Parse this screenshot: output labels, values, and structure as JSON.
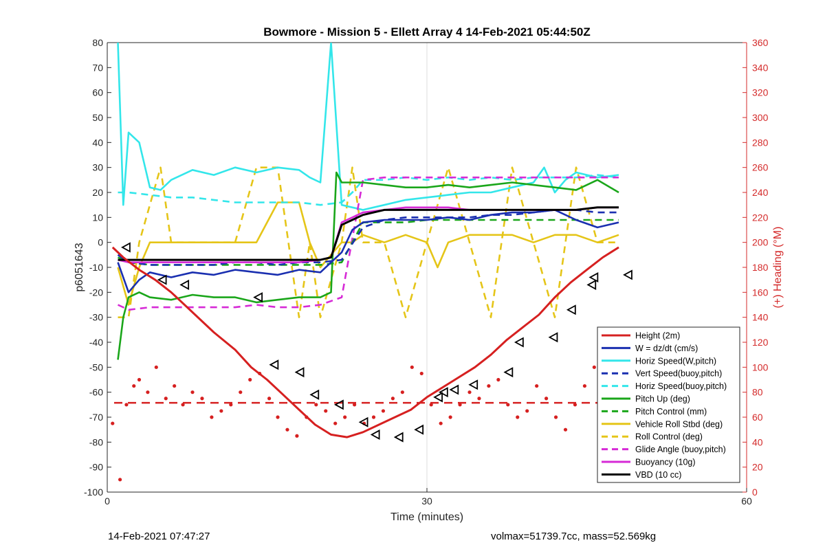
{
  "footer": {
    "timestamp": "14-Feb-2021 07:47:27",
    "volmax_mass": "volmax=51739.7cc, mass=52.569kg"
  },
  "chart_data": {
    "type": "line",
    "title": "Bowmore - Mission 5 - Ellett Array 4 14-Feb-2021 05:44:50Z",
    "xlabel": "Time (minutes)",
    "ylabel_left": "p6051643",
    "ylabel_right": "(+) Heading (°M)",
    "xlim": [
      0,
      60
    ],
    "ylim_left": [
      -100,
      80
    ],
    "ylim_right": [
      0,
      360
    ],
    "xticks": [
      "0",
      "30",
      "60"
    ],
    "yticks_left": [
      "80",
      "70",
      "60",
      "50",
      "40",
      "30",
      "20",
      "10",
      "0",
      "-10",
      "-20",
      "-30",
      "-40",
      "-50",
      "-60",
      "-70",
      "-80",
      "-90",
      "-100"
    ],
    "yticks_right": [
      "360",
      "340",
      "320",
      "300",
      "280",
      "260",
      "240",
      "220",
      "200",
      "180",
      "160",
      "140",
      "120",
      "100",
      "80",
      "60",
      "40",
      "20",
      "0"
    ],
    "grid": "x-only",
    "legend_position": "bottom-right",
    "colors": {
      "red": "#d62020",
      "blue": "#1a2fb0",
      "cyan": "#33e6ea",
      "green": "#1aa61a",
      "yellow": "#e5c518",
      "magenta": "#d62ad6",
      "black": "#000000",
      "right_axis": "#d42a2a"
    },
    "legend": [
      {
        "label": "Height (2m)",
        "color": "#d62020",
        "dash": "solid"
      },
      {
        "label": "W = dz/dt (cm/s)",
        "color": "#1a2fb0",
        "dash": "solid"
      },
      {
        "label": "Horiz Speed(W,pitch)",
        "color": "#33e6ea",
        "dash": "solid"
      },
      {
        "label": "Vert Speed(buoy,pitch)",
        "color": "#1a2fb0",
        "dash": "dashed"
      },
      {
        "label": "Horiz Speed(buoy,pitch)",
        "color": "#33e6ea",
        "dash": "dashed"
      },
      {
        "label": "Pitch Up (deg)",
        "color": "#1aa61a",
        "dash": "solid"
      },
      {
        "label": "Pitch Control (mm)",
        "color": "#1aa61a",
        "dash": "dashed"
      },
      {
        "label": "Vehicle Roll Stbd (deg)",
        "color": "#e5c518",
        "dash": "solid"
      },
      {
        "label": "Roll Control (deg)",
        "color": "#e5c518",
        "dash": "dashed"
      },
      {
        "label": "Glide Angle (buoy,pitch)",
        "color": "#d62ad6",
        "dash": "dashed"
      },
      {
        "label": "Buoyancy (10g)",
        "color": "#d62ad6",
        "dash": "solid"
      },
      {
        "label": "VBD (10 cc)",
        "color": "#000000",
        "dash": "solid"
      }
    ],
    "series": [
      {
        "name": "Height (2m)",
        "x": [
          0.5,
          1.5,
          3,
          4.5,
          6,
          8,
          10,
          12,
          13.5,
          15,
          16.5,
          18,
          19.5,
          21,
          22.5,
          24,
          25.5,
          27,
          28.5,
          30,
          31.5,
          33,
          34.5,
          36,
          37.5,
          39,
          40.5,
          42,
          43.5,
          45,
          46.5,
          48
        ],
        "y": [
          -2,
          -6,
          -11,
          -15,
          -20,
          -28,
          -36,
          -43,
          -50,
          -55,
          -61,
          -67,
          -73,
          -77,
          -78,
          -76,
          -73,
          -70,
          -67,
          -62,
          -58,
          -54,
          -50,
          -45,
          -39,
          -34,
          -29,
          -22,
          -16,
          -11,
          -6,
          -2
        ]
      },
      {
        "name": "Glide markers",
        "x": [
          1.8,
          5.2,
          7.3,
          14.2,
          15.7,
          18.1,
          19.5,
          21.8,
          24.1,
          25.2,
          27.4,
          29.3,
          31.1,
          31.6,
          32.6,
          34.4,
          37.7,
          38.7,
          41.9,
          43.6,
          45.5,
          45.7,
          48.9
        ],
        "y": [
          -2,
          -15,
          -17,
          -22,
          -49,
          -52,
          -61,
          -65,
          -72,
          -77,
          -78,
          -75,
          -62,
          -60,
          -59,
          -57,
          -52,
          -40,
          -38,
          -27,
          -17,
          -14,
          -13
        ]
      },
      {
        "name": "Heading",
        "type": "scatter",
        "x": [
          0.5,
          1.2,
          1.8,
          2.5,
          3,
          3.8,
          4.6,
          5.5,
          6.3,
          7.1,
          8,
          8.9,
          9.8,
          10.7,
          11.6,
          12.5,
          13.4,
          14.3,
          15.2,
          16,
          16.9,
          17.8,
          18.7,
          19.6,
          20.5,
          21.4,
          22.3,
          23.2,
          24.1,
          25,
          25.9,
          26.8,
          27.7,
          28.6,
          29.5,
          30.4,
          31.3,
          32.2,
          33.1,
          34,
          34.9,
          35.8,
          36.7,
          37.6,
          38.5,
          39.4,
          40.3,
          41.2,
          42.1,
          43,
          43.9,
          44.8,
          45.7,
          46.6,
          47.5,
          48.2
        ],
        "y": [
          55,
          10,
          70,
          85,
          90,
          80,
          100,
          75,
          85,
          70,
          80,
          75,
          60,
          65,
          70,
          80,
          90,
          95,
          75,
          60,
          50,
          45,
          60,
          70,
          65,
          55,
          60,
          70,
          55,
          60,
          65,
          75,
          80,
          100,
          95,
          70,
          55,
          60,
          70,
          80,
          75,
          85,
          90,
          70,
          60,
          65,
          85,
          75,
          60,
          50,
          70,
          85,
          100,
          80,
          75,
          70
        ]
      },
      {
        "name": "W = dz/dt (cm/s)",
        "x": [
          1,
          2,
          3,
          4,
          6,
          8,
          10,
          12,
          14,
          16,
          18,
          20,
          22,
          23,
          24,
          26,
          28,
          30,
          32,
          34,
          36,
          38,
          40,
          42,
          44,
          46,
          48
        ],
        "y": [
          -8,
          -20,
          -15,
          -12,
          -14,
          -12,
          -13,
          -11,
          -12,
          -13,
          -11,
          -12,
          -4,
          5,
          8,
          9,
          9,
          9,
          10,
          9,
          11,
          12,
          12,
          13,
          9,
          6,
          8
        ]
      },
      {
        "name": "Horiz Speed(W,pitch)",
        "x": [
          1,
          1.5,
          2,
          3,
          4,
          5,
          6,
          8,
          10,
          12,
          14,
          16,
          18,
          19,
          20,
          21,
          22,
          24,
          26,
          28,
          30,
          32,
          34,
          36,
          38,
          40,
          41,
          42,
          43,
          44,
          46,
          48
        ],
        "y": [
          80,
          15,
          44,
          40,
          22,
          21,
          25,
          29,
          27,
          30,
          28,
          30,
          29,
          26,
          24,
          80,
          15,
          13,
          15,
          17,
          18,
          19,
          20,
          20,
          22,
          24,
          30,
          20,
          25,
          28,
          26,
          27
        ]
      },
      {
        "name": "Vert Speed(buoy,pitch)",
        "x": [
          1,
          2,
          4,
          6,
          8,
          10,
          12,
          14,
          16,
          18,
          20,
          22,
          24,
          26,
          28,
          30,
          32,
          34,
          36,
          38,
          40,
          42,
          44,
          46,
          48
        ],
        "y": [
          -5,
          -8,
          -9,
          -9,
          -9,
          -9,
          -8,
          -8,
          -9,
          -8,
          -8,
          -7,
          6,
          9,
          10,
          10,
          10,
          10,
          11,
          11,
          12,
          13,
          13,
          12,
          12
        ]
      },
      {
        "name": "Horiz Speed(buoy,pitch)",
        "x": [
          1,
          2,
          4,
          6,
          8,
          10,
          12,
          14,
          16,
          18,
          20,
          22,
          23,
          24,
          26,
          28,
          30,
          32,
          34,
          36,
          38,
          40,
          42,
          44,
          46,
          48
        ],
        "y": [
          20,
          20,
          19,
          18,
          18,
          17,
          16,
          16,
          16,
          16,
          15,
          16,
          20,
          25,
          25,
          26,
          25,
          26,
          25,
          26,
          25,
          26,
          26,
          26,
          27,
          26
        ]
      },
      {
        "name": "Pitch Up (deg)",
        "x": [
          1,
          1.5,
          2,
          3,
          4,
          6,
          8,
          10,
          12,
          14,
          16,
          18,
          20,
          21,
          21.5,
          22,
          24,
          26,
          28,
          30,
          32,
          34,
          36,
          38,
          40,
          42,
          44,
          46,
          48
        ],
        "y": [
          -47,
          -30,
          -22,
          -20,
          -22,
          -23,
          -21,
          -22,
          -22,
          -24,
          -23,
          -22,
          -22,
          -20,
          28,
          24,
          24,
          23,
          22,
          22,
          23,
          22,
          23,
          24,
          23,
          22,
          21,
          25,
          20
        ]
      },
      {
        "name": "Pitch Control (mm)",
        "x": [
          1,
          2,
          4,
          6,
          8,
          10,
          12,
          14,
          16,
          18,
          20,
          22,
          24,
          26,
          28,
          30,
          32,
          34,
          36,
          38,
          40,
          42,
          44,
          46,
          48
        ],
        "y": [
          -6,
          -8,
          -9,
          -9,
          -9,
          -9,
          -9,
          -9,
          -9,
          -9,
          -9,
          -8,
          8,
          8,
          8,
          9,
          9,
          9,
          9,
          9,
          9,
          9,
          9,
          9,
          9
        ]
      },
      {
        "name": "Vehicle Roll Stbd (deg)",
        "x": [
          1,
          2,
          3,
          4,
          5,
          6,
          8,
          10,
          12,
          14,
          16,
          18,
          19,
          20,
          22,
          23,
          24,
          26,
          28,
          30,
          31,
          32,
          34,
          36,
          38,
          40,
          42,
          44,
          46,
          48
        ],
        "y": [
          -10,
          -25,
          -10,
          0,
          0,
          0,
          0,
          0,
          0,
          0,
          16,
          16,
          0,
          -10,
          0,
          0,
          3,
          0,
          3,
          0,
          -10,
          0,
          3,
          3,
          3,
          0,
          3,
          3,
          0,
          3
        ]
      },
      {
        "name": "Roll Control (deg)",
        "x": [
          1,
          2,
          3,
          5,
          6,
          8,
          10,
          12,
          14,
          16,
          17,
          18,
          19,
          20,
          22,
          23,
          24,
          26,
          28,
          30,
          32,
          34,
          36,
          38,
          40,
          42,
          44,
          46,
          48
        ],
        "y": [
          -30,
          -30,
          0,
          30,
          0,
          0,
          0,
          0,
          30,
          30,
          0,
          -30,
          0,
          -30,
          0,
          30,
          0,
          0,
          -30,
          0,
          30,
          0,
          -30,
          30,
          0,
          -30,
          30,
          0,
          0
        ]
      },
      {
        "name": "Glide Angle (buoy,pitch)",
        "x": [
          1,
          2,
          4,
          6,
          8,
          10,
          12,
          14,
          16,
          18,
          20,
          22,
          24,
          26,
          28,
          30,
          32,
          34,
          36,
          38,
          40,
          42,
          44,
          46,
          48
        ],
        "y": [
          -25,
          -27,
          -26,
          -26,
          -26,
          -26,
          -26,
          -25,
          -26,
          -26,
          -25,
          -22,
          25,
          26,
          26,
          26,
          26,
          26,
          26,
          26,
          26,
          26,
          26,
          26,
          26
        ]
      },
      {
        "name": "Buoyancy (10g)",
        "x": [
          1,
          2,
          4,
          6,
          8,
          10,
          12,
          14,
          16,
          18,
          20,
          21,
          22,
          24,
          26,
          28,
          30,
          32,
          34,
          36,
          38,
          40,
          42,
          44,
          46,
          48
        ],
        "y": [
          -7,
          -8,
          -8,
          -8,
          -8,
          -8,
          -8,
          -8,
          -8,
          -8,
          -7,
          -6,
          8,
          12,
          13,
          14,
          14,
          14,
          13,
          13,
          13,
          13,
          13,
          13,
          14,
          14
        ]
      },
      {
        "name": "VBD (10 cc)",
        "x": [
          1,
          2,
          4,
          6,
          8,
          10,
          12,
          14,
          16,
          18,
          20,
          21,
          22,
          24,
          26,
          28,
          30,
          32,
          34,
          36,
          38,
          40,
          42,
          44,
          46,
          48
        ],
        "y": [
          -7,
          -7,
          -7,
          -7,
          -7,
          -7,
          -7,
          -7,
          -7,
          -7,
          -7,
          -6,
          7,
          11,
          13,
          13,
          13,
          13,
          13,
          13,
          13,
          13,
          13,
          13,
          14,
          14
        ]
      }
    ]
  }
}
